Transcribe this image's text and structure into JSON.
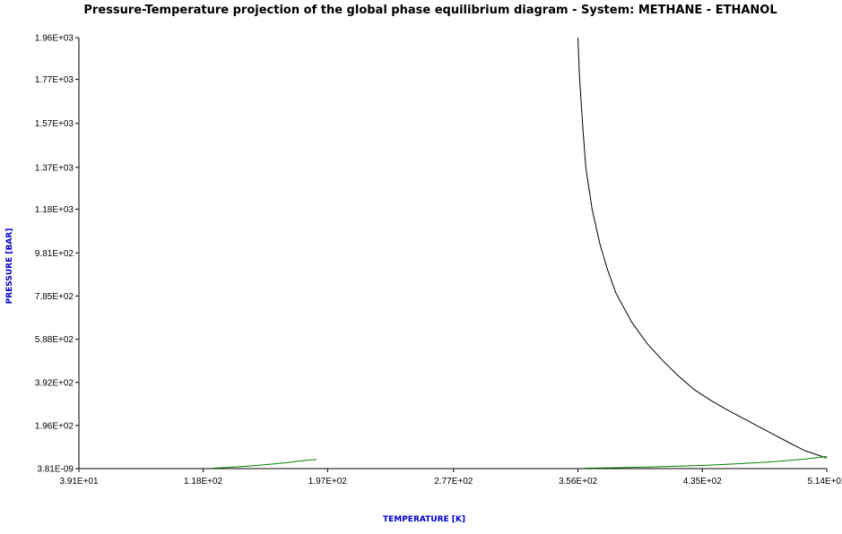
{
  "chart_data": {
    "type": "line",
    "title": "Pressure-Temperature projection of the global phase equilibrium diagram - System: METHANE - ETHANOL",
    "xlabel": "TEMPERATURE [K]",
    "ylabel": "PRESSURE [BAR]",
    "xlim": [
      39.1,
      514
    ],
    "ylim": [
      0,
      1960
    ],
    "x_ticks": [
      39.1,
      118,
      197,
      277,
      356,
      435,
      514
    ],
    "x_tick_labels": [
      "3.91E+01",
      "1.18E+02",
      "1.97E+02",
      "2.77E+02",
      "3.56E+02",
      "4.35E+02",
      "5.14E+02"
    ],
    "y_ticks": [
      0,
      196,
      392,
      588,
      785,
      981,
      1180,
      1370,
      1570,
      1770,
      1960
    ],
    "y_tick_labels": [
      "3.81E-09",
      "1.96E+02",
      "3.92E+02",
      "5.88E+02",
      "7.85E+02",
      "9.81E+02",
      "1.18E+03",
      "1.37E+03",
      "1.57E+03",
      "1.77E+03",
      "1.96E+03"
    ],
    "grid": false,
    "legend": "none",
    "colors": {
      "axis": "#000000",
      "critical_line": "#000000",
      "vapor_pressure": "#008000",
      "label_blue": "#0000cc"
    },
    "series": [
      {
        "color": "#000000",
        "x": [
          356,
          357,
          359,
          361,
          365,
          370,
          375,
          380,
          390,
          400,
          410,
          420,
          430,
          440,
          450,
          460,
          470,
          480,
          490,
          500,
          514
        ],
        "y": [
          1960,
          1780,
          1560,
          1370,
          1180,
          1020,
          900,
          800,
          668,
          568,
          490,
          420,
          358,
          312,
          270,
          232,
          194,
          156,
          118,
          82,
          48
        ]
      },
      {
        "color": "#008000",
        "x": [
          124,
          130,
          140,
          150,
          160,
          170,
          180,
          190
        ],
        "y": [
          2,
          4,
          8,
          13,
          19,
          26,
          35,
          42
        ]
      },
      {
        "color": "#008000",
        "x": [
          360,
          380,
          400,
          420,
          440,
          460,
          480,
          500,
          514
        ],
        "y": [
          2,
          4,
          7,
          11,
          16,
          23,
          31,
          43,
          55
        ]
      }
    ]
  }
}
